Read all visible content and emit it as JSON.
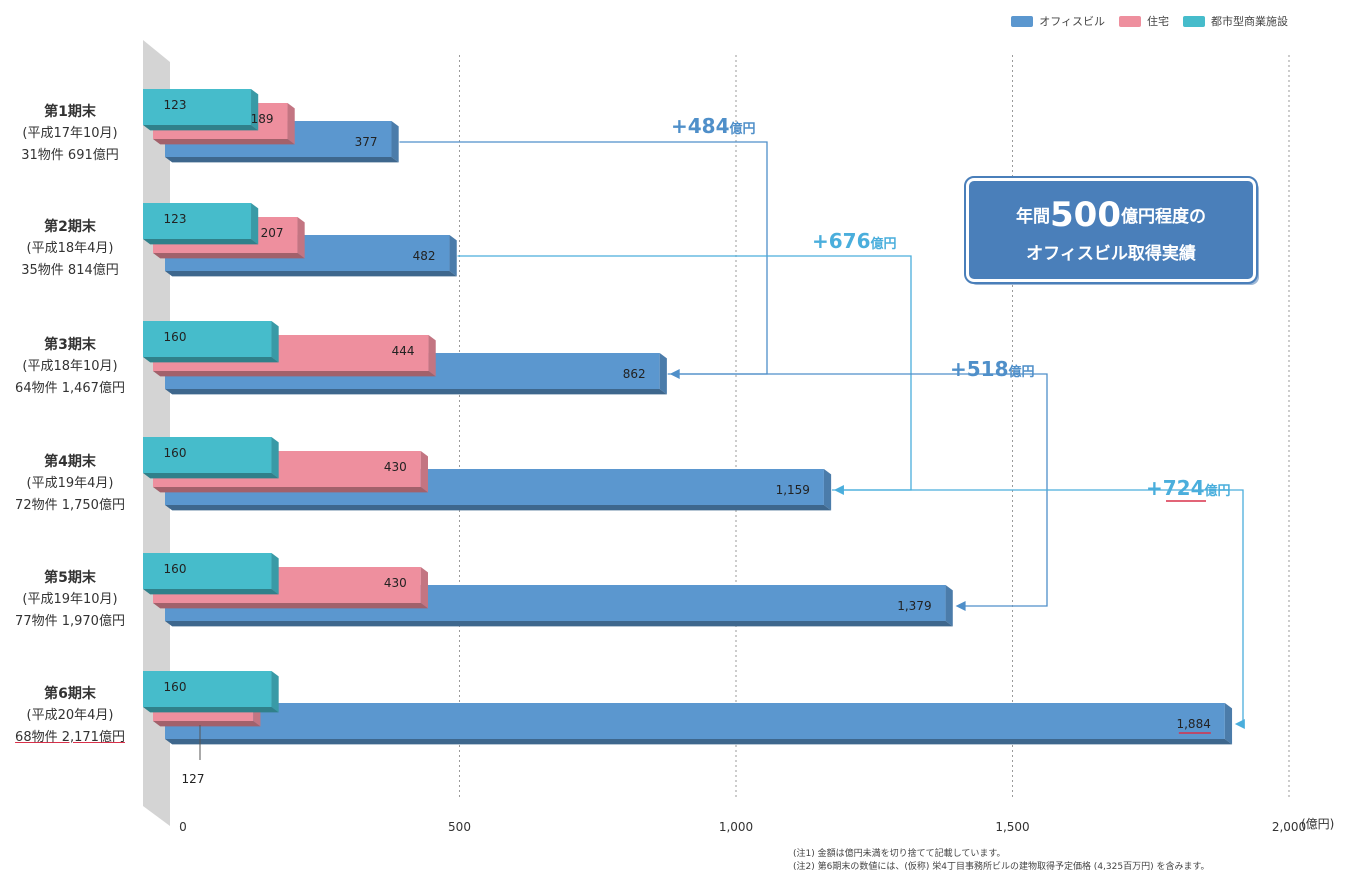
{
  "legend": {
    "items": [
      {
        "label": "オフィスビル",
        "color": "#5b97cf"
      },
      {
        "label": "住宅",
        "color": "#ee8f9e"
      },
      {
        "label": "都市型商業施設",
        "color": "#46bccb"
      }
    ]
  },
  "rows": [
    {
      "title": "第1期末",
      "period": "(平成17年10月)",
      "summary": "31物件 691億円"
    },
    {
      "title": "第2期末",
      "period": "(平成18年4月)",
      "summary": "35物件 814億円"
    },
    {
      "title": "第3期末",
      "period": "(平成18年10月)",
      "summary": "64物件 1,467億円"
    },
    {
      "title": "第4期末",
      "period": "(平成19年4月)",
      "summary": "72物件 1,750億円"
    },
    {
      "title": "第5期末",
      "period": "(平成19年10月)",
      "summary": "77物件 1,970億円"
    },
    {
      "title": "第6期末",
      "period": "(平成20年4月)",
      "summary": "68物件 2,171億円"
    }
  ],
  "callout": {
    "prefix": "年間",
    "number": "500",
    "suffix": "億円程度の",
    "line2": "オフィスビル取得実績"
  },
  "notes": [
    "(注1) 金額は億円未満を切り捨てて記載しています。",
    "(注2) 第6期末の数値には、(仮称) 栄4丁目事務所ビルの建物取得予定価格 (4,325百万円) を含みます。"
  ],
  "axis_unit": "(億円)",
  "chart_data": {
    "type": "bar",
    "orientation": "horizontal",
    "stacked": false,
    "categories": [
      "第1期末",
      "第2期末",
      "第3期末",
      "第4期末",
      "第5期末",
      "第6期末"
    ],
    "series": [
      {
        "name": "都市型商業施設",
        "color": "#46bccb",
        "values": [
          123,
          123,
          160,
          160,
          160,
          160
        ],
        "labels": [
          "123",
          "123",
          "160",
          "160",
          "160",
          "160"
        ]
      },
      {
        "name": "住宅",
        "color": "#ee8f9e",
        "values": [
          189,
          207,
          444,
          430,
          430,
          127
        ],
        "labels": [
          "189",
          "207",
          "444",
          "430",
          "430",
          "127"
        ]
      },
      {
        "name": "オフィスビル",
        "color": "#5b97cf",
        "values": [
          377,
          482,
          862,
          1159,
          1379,
          1884
        ],
        "labels": [
          "377",
          "482",
          "862",
          "1,159",
          "1,379",
          "1,884"
        ]
      }
    ],
    "xlim": [
      0,
      2000
    ],
    "xticks": [
      0,
      500,
      1000,
      1500,
      2000
    ],
    "xtick_labels": [
      "0",
      "500",
      "1,000",
      "1,500",
      "2,000"
    ],
    "grid": true,
    "legend_position": "top-right",
    "annotations": [
      {
        "label_num": "+484",
        "label_unit": "億円",
        "from": 0,
        "to": 2
      },
      {
        "label_num": "+676",
        "label_unit": "億円",
        "from": 1,
        "to": 3
      },
      {
        "label_num": "+518",
        "label_unit": "億円",
        "from": 2,
        "to": 4
      },
      {
        "label_num": "+724",
        "label_unit": "億円",
        "from": 3,
        "to": 5
      }
    ]
  }
}
